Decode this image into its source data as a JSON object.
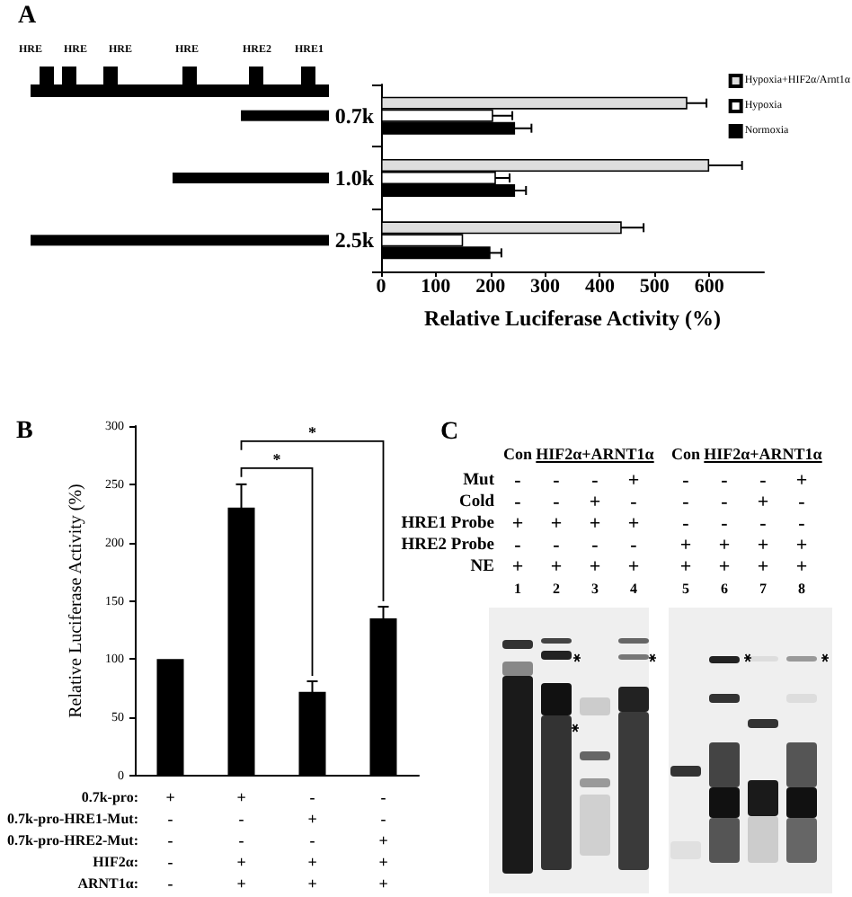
{
  "chart_data": [
    {
      "type": "bar",
      "orientation": "horizontal",
      "categories": [
        "0.7k",
        "1.0k",
        "2.5k"
      ],
      "series": [
        {
          "name": "Hypoxia+HIF2α/Arnt1α",
          "color": "#dddddd",
          "values": [
            560,
            600,
            440
          ],
          "errors": [
            35,
            60,
            40
          ]
        },
        {
          "name": "Hypoxia",
          "color": "#ffffff",
          "values": [
            205,
            210,
            150
          ],
          "errors": [
            35,
            25,
            null
          ]
        },
        {
          "name": "Normoxia",
          "color": "#000000",
          "values": [
            245,
            245,
            200
          ],
          "errors": [
            30,
            20,
            20
          ]
        }
      ],
      "xlabel": "Relative Luciferase Activity (%)",
      "xlim": [
        0,
        700
      ],
      "xticks": [
        0,
        100,
        200,
        300,
        400,
        500,
        600
      ],
      "legend": "top right",
      "annotations": [
        "A",
        "HRE",
        "HRE",
        "HRE",
        "HRE",
        "HRE2",
        "HRE1"
      ]
    },
    {
      "type": "bar",
      "title": "B",
      "categories": [
        "+\n-\n-\n-\n-",
        "+\n-\n-\n+\n+",
        "-\n+\n-\n+\n+",
        "-\n-\n+\n+\n+"
      ],
      "values": [
        100,
        230,
        72,
        135
      ],
      "errors": [
        null,
        20,
        9,
        10
      ],
      "color": "#000000",
      "ylabel": "Relative Luciferase Activity (%)",
      "ylim": [
        0,
        300
      ],
      "yticks": [
        0,
        50,
        100,
        150,
        200,
        250,
        300
      ],
      "annotations": [
        "0.7k-pro:",
        "0.7k-pro-HRE1-Mut:",
        "0.7k-pro-HRE2-Mut:",
        "HIF2α:",
        "ARNT1α:",
        "*",
        "*"
      ]
    },
    {
      "type": "heatmap",
      "title": "C",
      "categories": [
        "1",
        "2",
        "3",
        "4",
        "5",
        "6",
        "7",
        "8"
      ],
      "y_categories": [
        "Mut",
        "Cold",
        "HRE1 Probe",
        "HRE2 Probe",
        "NE"
      ],
      "cells": [
        [
          null,
          null,
          null,
          null,
          null,
          null,
          null,
          null
        ],
        [
          null,
          null,
          null,
          null,
          null,
          null,
          null,
          null
        ],
        [
          null,
          null,
          null,
          null,
          null,
          null,
          null,
          null
        ],
        [
          null,
          null,
          null,
          null,
          null,
          null,
          null,
          null
        ],
        [
          null,
          null,
          null,
          null,
          null,
          null,
          null,
          null
        ]
      ],
      "cell_labels": [
        [
          "-",
          "-",
          "-",
          "+",
          "-",
          "-",
          "-",
          "+"
        ],
        [
          "-",
          "-",
          "+",
          "-",
          "-",
          "-",
          "+",
          "-"
        ],
        [
          "+",
          "+",
          "+",
          "+",
          "-",
          "-",
          "-",
          "-"
        ],
        [
          "-",
          "-",
          "-",
          "-",
          "+",
          "+",
          "+",
          "+"
        ],
        [
          "+",
          "+",
          "+",
          "+",
          "+",
          "+",
          "+",
          "+"
        ]
      ],
      "annotations": [
        "Con",
        "HIF2α+ARNT1α",
        "Con",
        "HIF2α+ARNT1α"
      ]
    }
  ]
}
